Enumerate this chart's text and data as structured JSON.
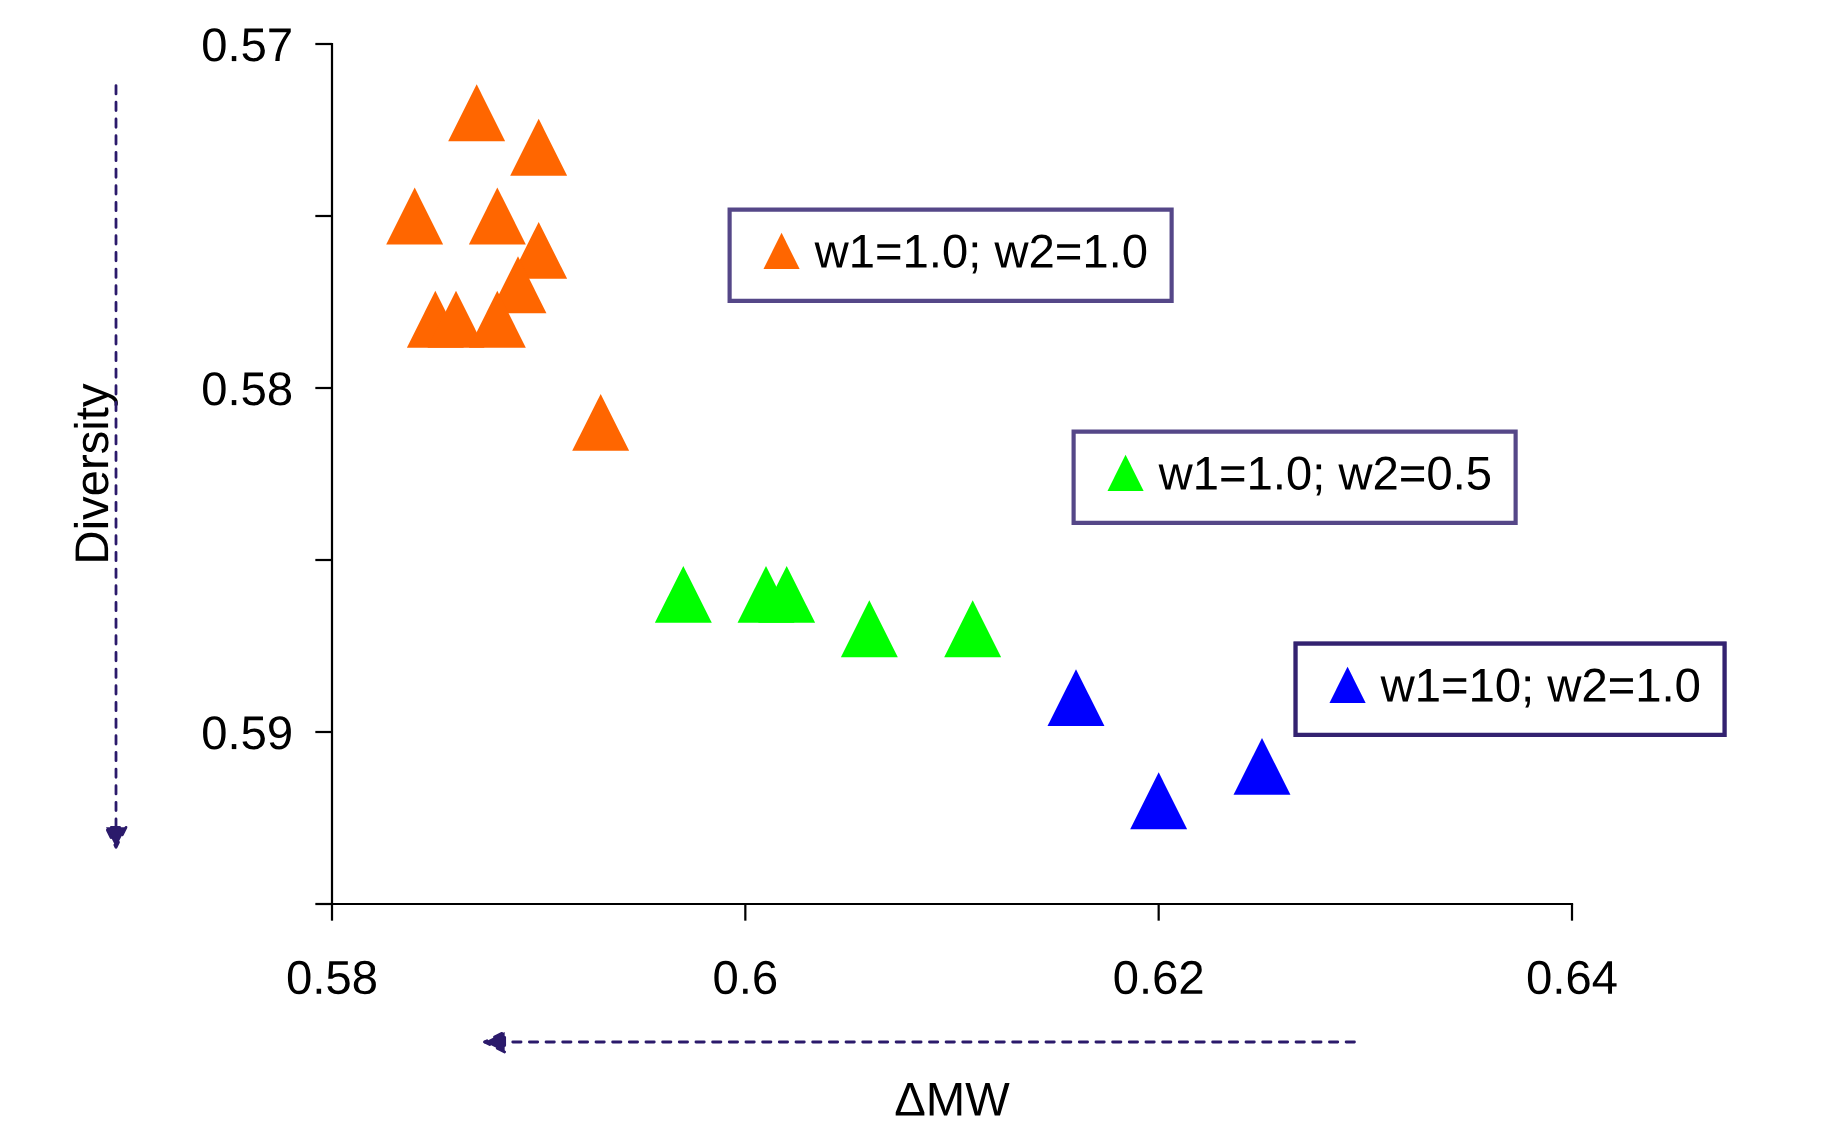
{
  "chart_data": {
    "type": "scatter",
    "xlabel": "ΔMW",
    "ylabel": "Diversity",
    "marker": "triangle",
    "legend": "right",
    "grid": false,
    "xlim": [
      0.58,
      0.64
    ],
    "xticks": [
      0.58,
      {
        "value": 0.6,
        "label": "0.6"
      },
      0.62,
      0.64
    ],
    "ylim": [
      0.595,
      0.57
    ],
    "yticks": [
      0.57,
      {
        "value": 0.575,
        "label": null
      },
      0.58,
      {
        "value": 0.585,
        "label": null
      },
      0.59,
      {
        "value": 0.595,
        "label": null
      }
    ],
    "series": [
      {
        "name": "w1=1.0; w2=1.0",
        "color": "#ff6600",
        "x": [
          0.587,
          0.59,
          0.584,
          0.588,
          0.59,
          0.589,
          0.585,
          0.586,
          0.588,
          0.593
        ],
        "values": [
          0.572,
          0.573,
          0.575,
          0.575,
          0.576,
          0.577,
          0.578,
          0.578,
          0.578,
          0.581
        ]
      },
      {
        "name": "w1=1.0; w2=0.5",
        "color": "#00ff00",
        "x": [
          0.597,
          0.601,
          0.602,
          0.606,
          0.611
        ],
        "values": [
          0.586,
          0.586,
          0.586,
          0.587,
          0.587
        ]
      },
      {
        "name": "w1=10; w2=1.0",
        "color": "#0000ff",
        "x": [
          0.616,
          0.62,
          0.625
        ],
        "values": [
          0.589,
          0.592,
          0.591
        ]
      }
    ]
  }
}
